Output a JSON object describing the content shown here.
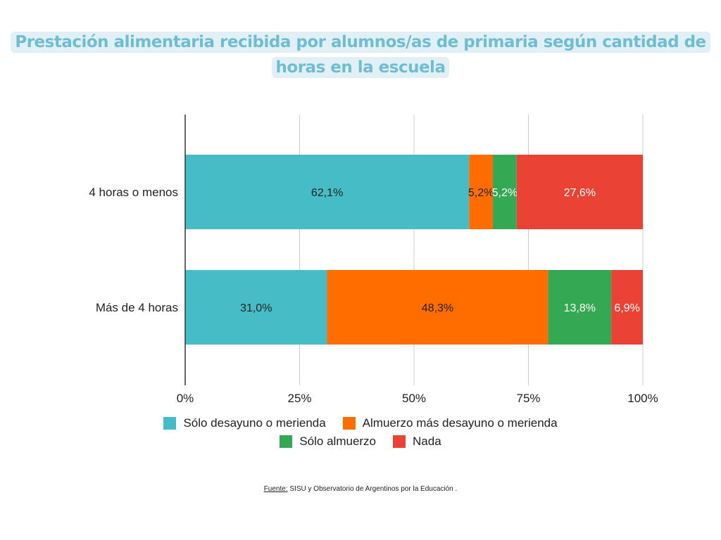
{
  "title": "Prestación alimentaria recibida por alumnos/as de primaria según cantidad de horas en la escuela",
  "source_label": "Fuente:",
  "source_text": "SISU y Observatorio de Argentinos por la Educación .",
  "chart_data": {
    "type": "bar",
    "orientation": "horizontal",
    "stacked": "percent",
    "title": "Prestación alimentaria recibida por alumnos/as de primaria según cantidad de horas en la escuela",
    "categories": [
      "4 horas o menos",
      "Más de 4 horas"
    ],
    "series": [
      {
        "name": "Sólo desayuno o merienda",
        "color": "#46BDC6",
        "values": [
          62.1,
          31.0
        ],
        "labels": [
          "62,1%",
          "31,0%"
        ],
        "label_color": "#222222"
      },
      {
        "name": "Almuerzo más desayuno o merienda",
        "color": "#FF6D01",
        "values": [
          5.2,
          48.3
        ],
        "labels": [
          "5,2%",
          "48,3%"
        ],
        "label_color": "#222222"
      },
      {
        "name": "Sólo almuerzo",
        "color": "#34A853",
        "values": [
          5.2,
          13.8
        ],
        "labels": [
          "5,2%",
          "13,8%"
        ],
        "label_color": "#ffffff"
      },
      {
        "name": "Nada",
        "color": "#EA4335",
        "values": [
          27.6,
          6.9
        ],
        "labels": [
          "27,6%",
          "6,9%"
        ],
        "label_color": "#ffffff"
      }
    ],
    "xlim": [
      0,
      100
    ],
    "xticks": [
      "0%",
      "25%",
      "50%",
      "75%",
      "100%"
    ],
    "grid": true,
    "legend": "bottom"
  }
}
